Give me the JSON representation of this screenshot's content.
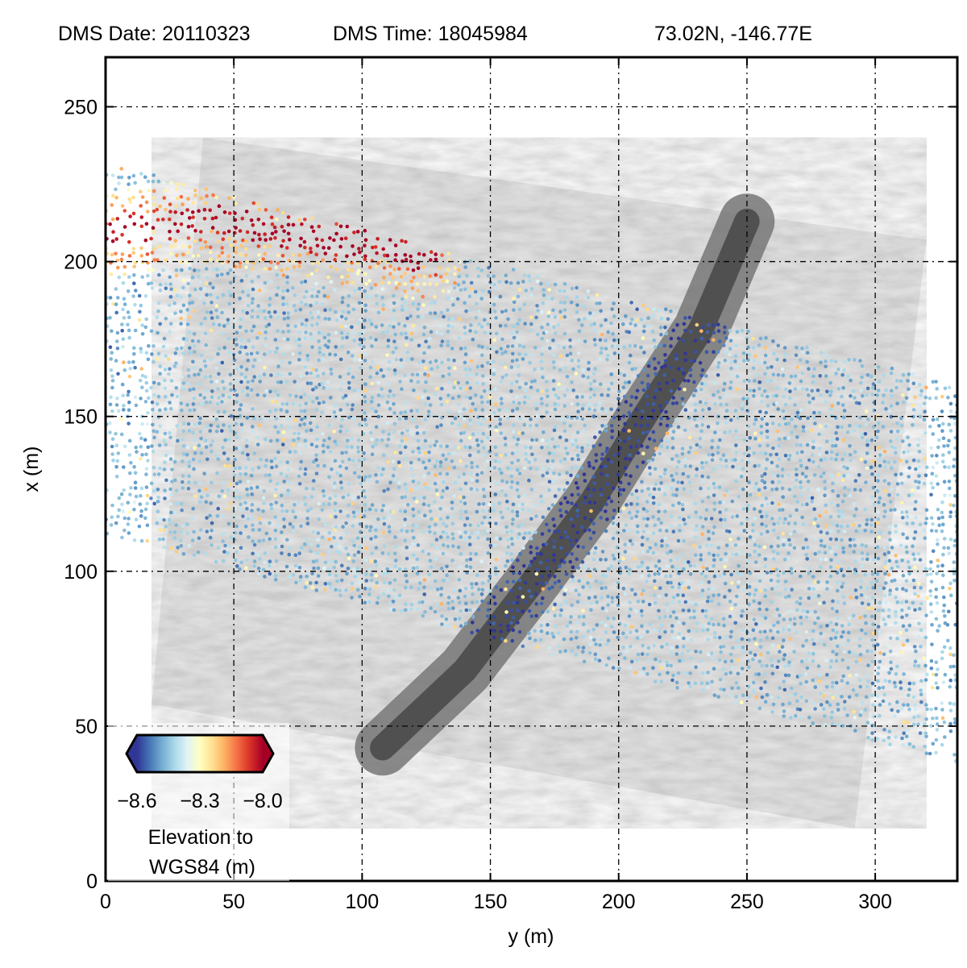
{
  "header": {
    "date_label": "DMS Date: 20110323",
    "time_label": "DMS Time: 18045984",
    "coords_label": "73.02N, -146.77E"
  },
  "colorbar": {
    "colors": [
      "#313695",
      "#4575b4",
      "#74add1",
      "#abd9e9",
      "#e0f3f8",
      "#ffffbf",
      "#fee090",
      "#fdae61",
      "#f46d43",
      "#d73027",
      "#a50026"
    ],
    "min": -8.6,
    "max": -8.0,
    "tick_labels": [
      "−8.6",
      "−8.3",
      "−8.0"
    ],
    "label_line1": "Elevation to",
    "label_line2": "WGS84 (m)"
  },
  "chart_data": {
    "type": "scatter",
    "xlabel": "y (m)",
    "ylabel": "x (m)",
    "xlim": [
      0,
      332
    ],
    "ylim": [
      0,
      266
    ],
    "x_ticks": [
      0,
      50,
      100,
      150,
      200,
      250,
      300
    ],
    "y_ticks": [
      0,
      50,
      100,
      150,
      200,
      250
    ],
    "grid": true,
    "background_image": {
      "type": "grayscale-aerial-photo",
      "corners": [
        [
          38,
          240
        ],
        [
          320,
          207
        ],
        [
          292,
          17
        ],
        [
          18,
          57
        ]
      ]
    },
    "swath": {
      "corners": [
        [
          0,
          232
        ],
        [
          332,
          160
        ],
        [
          332,
          38
        ],
        [
          0,
          112
        ]
      ]
    },
    "lead": {
      "centerline": [
        [
          108,
          43
        ],
        [
          140,
          68
        ],
        [
          165,
          95
        ],
        [
          190,
          123
        ],
        [
          210,
          150
        ],
        [
          232,
          178
        ],
        [
          250,
          213
        ]
      ],
      "width": 9
    },
    "elevation_range": [
      -8.6,
      -8.0
    ],
    "high_elevation_region": {
      "centerline": [
        [
          5,
          209
        ],
        [
          40,
          214
        ],
        [
          80,
          208
        ],
        [
          110,
          205
        ],
        [
          125,
          201
        ]
      ],
      "value": -8.0
    }
  }
}
